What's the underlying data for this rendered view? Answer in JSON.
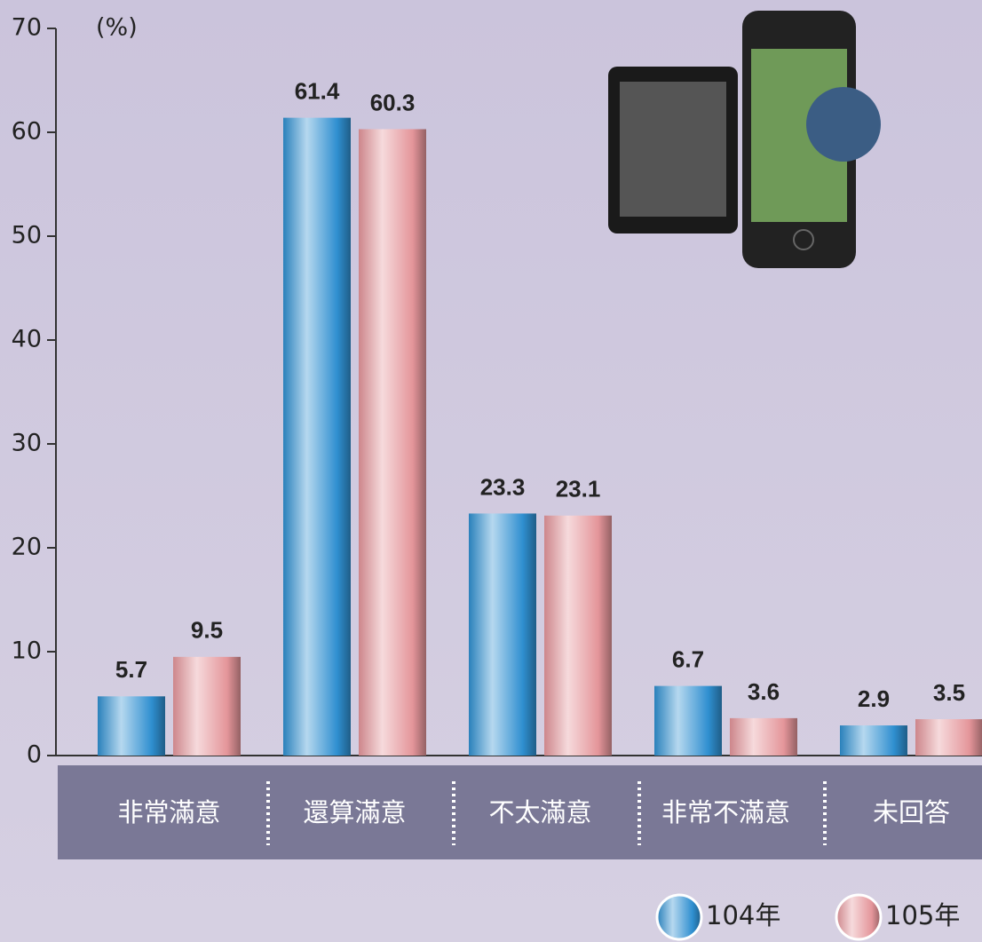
{
  "chart_data": {
    "type": "bar",
    "y_label": "(%)",
    "categories": [
      "非常滿意",
      "還算滿意",
      "不太滿意",
      "非常不滿意",
      "未回答"
    ],
    "series": [
      {
        "name": "104年",
        "color": "#2f8fd0",
        "values": [
          5.7,
          61.4,
          23.3,
          6.7,
          2.9
        ]
      },
      {
        "name": "105年",
        "color": "#e4959a",
        "values": [
          9.5,
          60.3,
          23.1,
          3.6,
          3.5
        ]
      }
    ],
    "ylim": [
      0,
      70
    ],
    "yticks": [
      0,
      10,
      20,
      30,
      40,
      50,
      60,
      70
    ]
  }
}
